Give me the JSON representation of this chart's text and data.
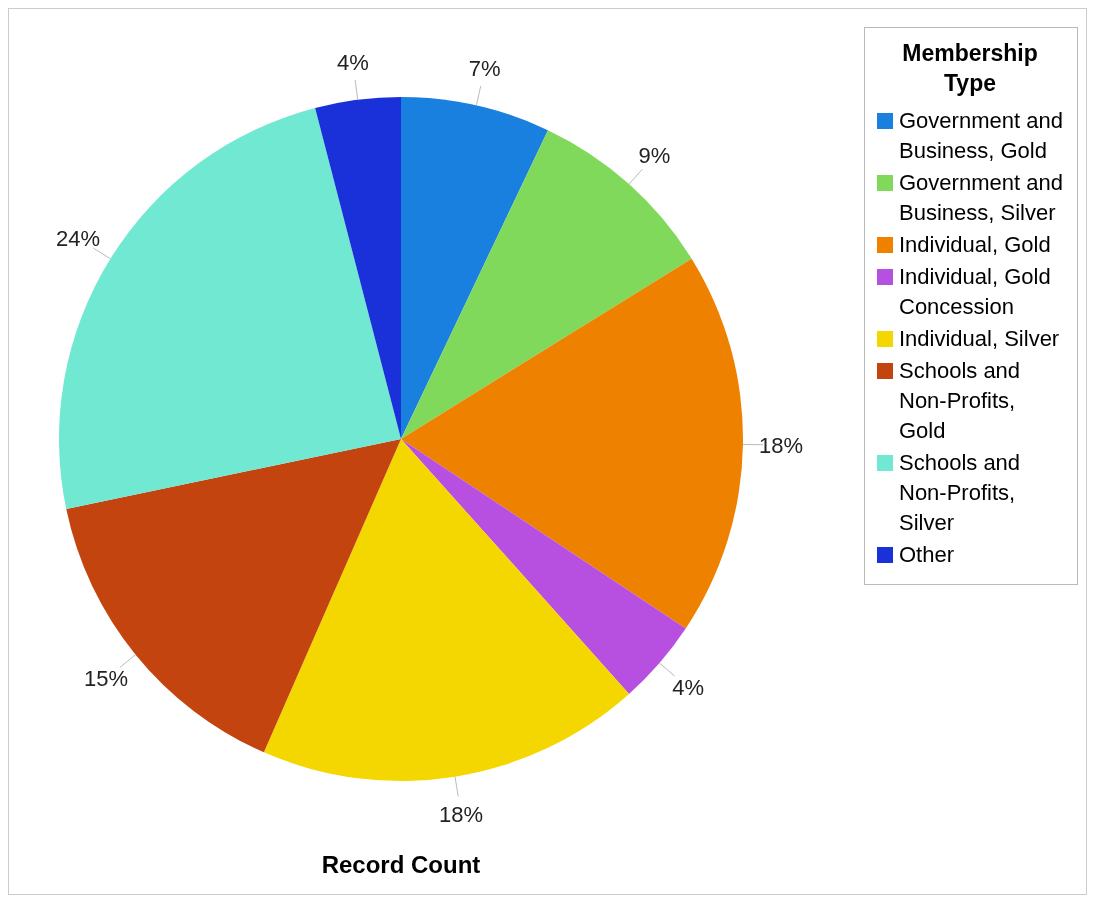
{
  "chart_data": {
    "type": "pie",
    "xlabel": "Record Count",
    "legend_title": "Membership Type",
    "legend": "top right",
    "categories": [
      "Government and Business, Gold",
      "Government and Business, Silver",
      "Individual, Gold",
      "Individual, Gold Concession",
      "Individual, Silver",
      "Schools and Non-Profits, Gold",
      "Schools and Non-Profits, Silver",
      "Other"
    ],
    "values": [
      7,
      9,
      18,
      4,
      18,
      15,
      24,
      4
    ],
    "value_labels": [
      "7%",
      "9%",
      "18%",
      "4%",
      "18%",
      "15%",
      "24%",
      "4%"
    ],
    "colors": [
      "#1a80e0",
      "#80d95a",
      "#ee8200",
      "#b74fe0",
      "#f4d700",
      "#c4440f",
      "#70e8d2",
      "#1a30d8"
    ]
  }
}
